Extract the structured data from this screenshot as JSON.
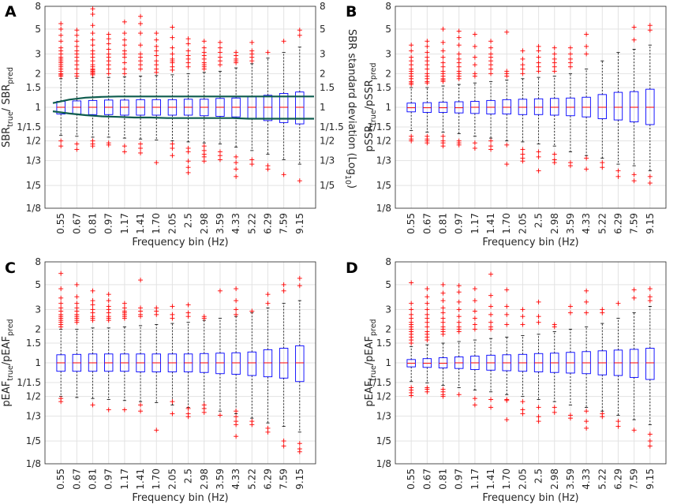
{
  "figure": {
    "xlabel": "Frequency bin (Hz)",
    "right_ylabel_main": "SBR standard deviation (Log",
    "right_ylabel_sub": "10",
    "right_ylabel_close": ")"
  },
  "colors": {
    "box": "#0000ff",
    "median": "#ff0000",
    "outlier": "#ff0000",
    "whisker": "#000000",
    "sd_curve": "#0e5c4e",
    "grid": "#e3e3e3"
  },
  "chart_data": [
    {
      "type": "box",
      "panel": "A",
      "ylabel": {
        "main": "SBR",
        "sub1": "true",
        "mid": "/ SBR",
        "sub2": "pred"
      },
      "categories": [
        "0.55",
        "0.67",
        "0.81",
        "0.97",
        "1.17",
        "1.41",
        "1.70",
        "2.05",
        "2.5",
        "2.98",
        "3.59",
        "4.33",
        "5.22",
        "6.29",
        "7.59",
        "9.15"
      ],
      "yscale": "log",
      "ylim": [
        0.125,
        8
      ],
      "yticks": [
        0.125,
        0.2,
        0.3333,
        0.5,
        0.6667,
        1,
        1.5,
        2,
        3,
        5,
        8
      ],
      "ytick_labels": [
        "1/8",
        "1/5",
        "1/3",
        "1/2",
        "1/1.5",
        "1",
        "1.5",
        "2",
        "3",
        "5",
        "8"
      ],
      "right_yticks": [
        0.2,
        0.3333,
        0.5,
        0.6667,
        1,
        1.5,
        2,
        3,
        5,
        8
      ],
      "right_ytick_labels": [
        "1/5",
        "1/3",
        "1/2",
        "1/1.5",
        "1",
        "1.5",
        "2",
        "3",
        "5",
        "8"
      ],
      "q1": [
        0.87,
        0.87,
        0.86,
        0.86,
        0.85,
        0.85,
        0.85,
        0.85,
        0.85,
        0.84,
        0.83,
        0.82,
        0.79,
        0.76,
        0.73,
        0.71
      ],
      "median": [
        1.0,
        1.0,
        1.0,
        1.0,
        1.0,
        1.0,
        1.0,
        1.0,
        1.0,
        1.0,
        1.0,
        1.0,
        1.0,
        1.0,
        1.0,
        1.0
      ],
      "q3": [
        1.13,
        1.14,
        1.15,
        1.16,
        1.16,
        1.17,
        1.17,
        1.17,
        1.18,
        1.18,
        1.2,
        1.21,
        1.24,
        1.28,
        1.33,
        1.37
      ],
      "whisker_low": [
        0.56,
        0.55,
        0.54,
        0.54,
        0.53,
        0.52,
        0.51,
        0.5,
        0.49,
        0.48,
        0.47,
        0.44,
        0.41,
        0.38,
        0.34,
        0.31
      ],
      "whisker_high": [
        1.8,
        1.82,
        1.85,
        1.85,
        1.87,
        1.9,
        1.92,
        1.95,
        2.0,
        2.05,
        2.1,
        2.25,
        2.45,
        2.75,
        3.1,
        3.45
      ],
      "outliers": [
        [
          5.6,
          5.0,
          4.4,
          3.9,
          3.4,
          3.2,
          3.0,
          2.8,
          2.7,
          2.6,
          2.5,
          2.4,
          2.3,
          2.2,
          2.1,
          2.0,
          1.95,
          1.9,
          0.5,
          0.45
        ],
        [
          4.9,
          4.4,
          3.9,
          3.5,
          3.2,
          3.0,
          2.8,
          2.6,
          2.4,
          2.2,
          2.0,
          1.9,
          0.47,
          0.42
        ],
        [
          7.6,
          6.8,
          5.4,
          4.6,
          4.0,
          3.6,
          3.2,
          3.0,
          2.8,
          2.6,
          2.4,
          2.3,
          2.2,
          2.15,
          2.1,
          2.05,
          2.0,
          1.95,
          0.5,
          0.47,
          0.45
        ],
        [
          4.5,
          4.1,
          3.7,
          3.3,
          3.0,
          2.8,
          2.6,
          2.4,
          2.2,
          2.0,
          0.48,
          0.46
        ],
        [
          5.8,
          4.6,
          4.0,
          3.6,
          3.2,
          3.0,
          2.8,
          2.5,
          2.2,
          2.0,
          0.45,
          0.4
        ],
        [
          6.5,
          5.6,
          4.6,
          3.6,
          3.0,
          2.8,
          2.6,
          2.4,
          2.2,
          0.47,
          0.43,
          0.39
        ],
        [
          4.6,
          4.0,
          3.5,
          3.2,
          2.9,
          2.6,
          2.4,
          2.2,
          2.05,
          0.32
        ],
        [
          5.2,
          4.2,
          3.4,
          3.0,
          2.7,
          2.6,
          2.5,
          2.3,
          2.15,
          0.47,
          0.43,
          0.37
        ],
        [
          4.1,
          3.7,
          3.2,
          2.9,
          2.7,
          2.5,
          2.3,
          0.43,
          0.4,
          0.33,
          0.29,
          0.26
        ],
        [
          3.9,
          3.4,
          3.1,
          2.9,
          2.7,
          2.5,
          2.4,
          2.3,
          2.2,
          0.45,
          0.41,
          0.38,
          0.36,
          0.33
        ],
        [
          3.8,
          3.4,
          3.1,
          2.8,
          2.6,
          2.4,
          0.4,
          0.37,
          0.34
        ],
        [
          3.1,
          2.9,
          2.7,
          2.6,
          2.5,
          0.36,
          0.32,
          0.28,
          0.24
        ],
        [
          3.8,
          3.2,
          3.0,
          2.8,
          2.6,
          0.34,
          0.31
        ],
        [
          3.1,
          0.3,
          0.28
        ],
        [
          3.9,
          0.25
        ],
        [
          4.9,
          4.4,
          0.22
        ]
      ],
      "sd_curve": {
        "upper": [
          1.09,
          1.17,
          1.22,
          1.24,
          1.25,
          1.25,
          1.25,
          1.25,
          1.25,
          1.25,
          1.25,
          1.25,
          1.25,
          1.25,
          1.25,
          1.25,
          1.25
        ],
        "lower": [
          0.92,
          0.88,
          0.85,
          0.83,
          0.82,
          0.81,
          0.81,
          0.8,
          0.8,
          0.8,
          0.8,
          0.8,
          0.79,
          0.79,
          0.79,
          0.79,
          0.79
        ]
      }
    },
    {
      "type": "box",
      "panel": "B",
      "ylabel": {
        "main": "pSSR",
        "sub1": "true",
        "mid": "/pSSR",
        "sub2": "pred"
      },
      "categories": [
        "0.55",
        "0.67",
        "0.81",
        "0.97",
        "1.17",
        "1.41",
        "1.70",
        "2.05",
        "2.5",
        "2.98",
        "3.59",
        "4.33",
        "5.22",
        "6.29",
        "7.59",
        "9.15"
      ],
      "yscale": "log",
      "ylim": [
        0.125,
        8
      ],
      "yticks": [
        0.125,
        0.2,
        0.3333,
        0.5,
        0.6667,
        1,
        1.5,
        2,
        3,
        5,
        8
      ],
      "ytick_labels": [
        "1/8",
        "1/5",
        "1/3",
        "1/2",
        "1/1.5",
        "1",
        "1.5",
        "2",
        "3",
        "5",
        "8"
      ],
      "q1": [
        0.91,
        0.9,
        0.9,
        0.89,
        0.88,
        0.87,
        0.87,
        0.86,
        0.86,
        0.85,
        0.84,
        0.82,
        0.79,
        0.77,
        0.74,
        0.7
      ],
      "median": [
        0.99,
        0.99,
        0.99,
        0.99,
        1.0,
        1.0,
        1.0,
        1.0,
        1.0,
        1.0,
        1.0,
        1.0,
        1.0,
        1.0,
        1.0,
        1.0
      ],
      "q3": [
        1.09,
        1.1,
        1.11,
        1.12,
        1.13,
        1.15,
        1.17,
        1.18,
        1.19,
        1.2,
        1.21,
        1.23,
        1.3,
        1.36,
        1.38,
        1.45
      ],
      "whisker_low": [
        0.62,
        0.6,
        0.6,
        0.58,
        0.55,
        0.53,
        0.5,
        0.49,
        0.47,
        0.45,
        0.4,
        0.37,
        0.35,
        0.31,
        0.3,
        0.27
      ],
      "whisker_high": [
        1.5,
        1.5,
        1.55,
        1.6,
        1.65,
        1.7,
        1.75,
        1.8,
        1.85,
        1.9,
        2.0,
        2.2,
        2.6,
        3.1,
        3.3,
        3.6
      ],
      "outliers": [
        [
          3.6,
          3.2,
          2.8,
          2.6,
          2.4,
          2.2,
          2.1,
          2.0,
          1.9,
          1.8,
          1.7,
          1.65,
          1.6,
          0.55,
          0.52,
          0.5
        ],
        [
          3.9,
          3.5,
          3.1,
          2.8,
          2.6,
          2.4,
          2.2,
          2.0,
          1.9,
          1.8,
          1.7,
          1.65,
          0.55,
          0.52,
          0.5,
          0.48
        ],
        [
          5.0,
          3.8,
          3.2,
          2.8,
          2.5,
          2.3,
          2.1,
          2.0,
          1.9,
          1.8,
          1.75,
          1.7,
          0.55,
          0.5,
          0.48,
          0.45
        ],
        [
          4.8,
          4.2,
          3.6,
          3.0,
          2.7,
          2.5,
          2.3,
          2.1,
          2.0,
          1.9,
          1.8,
          0.5,
          0.48,
          0.46
        ],
        [
          4.5,
          3.5,
          2.8,
          2.4,
          2.0,
          1.9,
          0.48,
          0.43
        ],
        [
          3.9,
          3.4,
          3.0,
          2.8,
          2.6,
          2.4,
          2.2,
          2.0,
          0.5,
          0.45,
          0.42
        ],
        [
          4.7,
          2.1,
          2.0,
          1.9,
          0.46,
          0.31
        ],
        [
          3.2,
          2.7,
          2.4,
          2.2,
          2.0,
          0.42,
          0.38,
          0.35,
          0.33
        ],
        [
          3.5,
          3.2,
          2.8,
          2.5,
          2.3,
          2.1,
          0.4,
          0.36,
          0.27
        ],
        [
          3.4,
          3.0,
          2.7,
          2.5,
          2.3,
          2.1,
          0.38,
          0.34,
          0.32
        ],
        [
          3.4,
          3.0,
          2.7,
          2.5,
          2.3,
          0.32,
          0.3
        ],
        [
          4.5,
          3.5,
          3.0,
          0.35,
          0.28
        ],
        [
          0.32,
          0.29
        ],
        [
          0.27,
          0.24
        ],
        [
          5.2,
          4.0,
          0.25,
          0.22
        ],
        [
          5.4,
          4.9,
          0.24,
          0.21
        ]
      ]
    },
    {
      "type": "box",
      "panel": "C",
      "ylabel": {
        "main": "pEAF",
        "sub1": "true",
        "mid": "/pEAF",
        "sub2": "pred"
      },
      "categories": [
        "0.55",
        "0.67",
        "0.81",
        "0.97",
        "1.17",
        "1.41",
        "1.70",
        "2.05",
        "2.5",
        "2.98",
        "3.59",
        "4.33",
        "5.22",
        "6.29",
        "7.59",
        "9.15"
      ],
      "yscale": "log",
      "ylim": [
        0.125,
        8
      ],
      "yticks": [
        0.125,
        0.2,
        0.3333,
        0.5,
        0.6667,
        1,
        1.5,
        2,
        3,
        5,
        8
      ],
      "ytick_labels": [
        "1/8",
        "1/5",
        "1/3",
        "1/2",
        "1/1.5",
        "1",
        "1.5",
        "2",
        "3",
        "5",
        "8"
      ],
      "q1": [
        0.84,
        0.84,
        0.84,
        0.84,
        0.84,
        0.83,
        0.83,
        0.83,
        0.83,
        0.82,
        0.8,
        0.79,
        0.77,
        0.75,
        0.73,
        0.68
      ],
      "median": [
        1.0,
        1.0,
        1.0,
        1.0,
        1.0,
        1.0,
        1.0,
        1.0,
        1.0,
        1.0,
        1.0,
        1.0,
        1.0,
        1.0,
        1.0,
        1.0
      ],
      "q3": [
        1.18,
        1.19,
        1.2,
        1.2,
        1.2,
        1.2,
        1.2,
        1.2,
        1.2,
        1.21,
        1.22,
        1.23,
        1.25,
        1.31,
        1.35,
        1.42
      ],
      "whisker_low": [
        0.5,
        0.49,
        0.48,
        0.47,
        0.46,
        0.45,
        0.44,
        0.42,
        0.4,
        0.39,
        0.37,
        0.35,
        0.32,
        0.29,
        0.27,
        0.24
      ],
      "whisker_high": [
        2.0,
        2.0,
        2.05,
        2.05,
        2.1,
        2.15,
        2.2,
        2.25,
        2.3,
        2.4,
        2.5,
        2.6,
        2.8,
        3.1,
        3.4,
        3.6
      ],
      "outliers": [
        [
          6.3,
          4.6,
          3.8,
          3.4,
          3.1,
          2.9,
          2.7,
          2.6,
          2.5,
          2.4,
          2.3,
          2.2,
          2.1,
          0.48,
          0.45
        ],
        [
          5.0,
          3.9,
          3.4,
          3.1,
          2.9,
          2.7,
          2.6,
          2.5,
          2.4,
          2.3
        ],
        [
          4.4,
          3.6,
          3.3,
          3.0,
          2.8,
          2.6,
          2.5,
          2.4,
          0.42
        ],
        [
          4.1,
          3.6,
          3.2,
          3.0,
          2.8,
          2.6,
          2.5,
          2.4,
          0.38
        ],
        [
          3.4,
          3.1,
          2.9,
          2.8,
          2.7,
          2.6,
          2.5,
          0.38
        ],
        [
          5.5,
          3.1,
          2.9,
          2.7,
          2.6,
          0.42,
          0.37
        ],
        [
          3.1,
          2.9,
          2.7,
          0.25
        ],
        [
          3.2,
          2.7,
          2.5,
          0.45,
          0.35
        ],
        [
          3.3,
          2.8,
          2.6,
          0.39,
          0.35,
          0.33
        ],
        [
          2.6,
          2.5,
          0.42,
          0.39,
          0.36
        ],
        [
          4.4,
          0.34
        ],
        [
          4.6,
          3.6,
          3.0,
          2.7,
          0.37,
          0.33,
          0.3,
          0.28,
          0.22
        ],
        [
          2.9,
          0.3,
          0.28
        ],
        [
          4.1,
          3.4,
          0.26,
          0.24
        ],
        [
          5.0,
          4.4,
          0.2,
          0.18
        ],
        [
          5.7,
          4.9,
          0.19,
          0.17,
          0.16
        ]
      ]
    },
    {
      "type": "box",
      "panel": "D",
      "ylabel": {
        "main": "pEAF",
        "sub1": "true",
        "mid": "/pEAF",
        "sub2": "pred"
      },
      "categories": [
        "0.55",
        "0.67",
        "0.81",
        "0.97",
        "1.17",
        "1.41",
        "1.70",
        "2.05",
        "2.5",
        "2.98",
        "3.59",
        "4.33",
        "5.22",
        "6.29",
        "7.59",
        "9.15"
      ],
      "yscale": "log",
      "ylim": [
        0.125,
        8
      ],
      "yticks": [
        0.125,
        0.2,
        0.3333,
        0.5,
        0.6667,
        1,
        1.5,
        2,
        3,
        5,
        8
      ],
      "ytick_labels": [
        "1/8",
        "1/5",
        "1/3",
        "1/2",
        "1/1.5",
        "1",
        "1.5",
        "2",
        "3",
        "5",
        "8"
      ],
      "q1": [
        0.92,
        0.91,
        0.9,
        0.89,
        0.87,
        0.86,
        0.85,
        0.84,
        0.83,
        0.82,
        0.81,
        0.8,
        0.78,
        0.77,
        0.74,
        0.71
      ],
      "median": [
        0.99,
        0.99,
        0.99,
        1.0,
        1.0,
        1.0,
        1.0,
        1.0,
        1.0,
        1.0,
        1.0,
        1.0,
        1.0,
        1.0,
        1.0,
        1.0
      ],
      "q3": [
        1.07,
        1.09,
        1.11,
        1.13,
        1.15,
        1.17,
        1.18,
        1.19,
        1.21,
        1.22,
        1.24,
        1.26,
        1.28,
        1.3,
        1.32,
        1.35
      ],
      "whisker_low": [
        0.68,
        0.66,
        0.63,
        0.6,
        0.57,
        0.55,
        0.52,
        0.5,
        0.47,
        0.45,
        0.42,
        0.4,
        0.37,
        0.34,
        0.31,
        0.28
      ],
      "whisker_high": [
        1.4,
        1.45,
        1.5,
        1.55,
        1.6,
        1.65,
        1.7,
        1.75,
        1.8,
        1.9,
        2.0,
        2.1,
        2.25,
        2.5,
        2.8,
        3.2
      ],
      "outliers": [
        [
          5.2,
          3.4,
          3.0,
          2.7,
          2.5,
          2.3,
          2.2,
          2.1,
          2.0,
          1.9,
          1.8,
          1.7,
          1.6,
          1.5,
          0.6,
          0.57,
          0.54,
          0.51
        ],
        [
          4.6,
          3.9,
          3.4,
          3.0,
          2.7,
          2.5,
          2.3,
          2.1,
          1.9,
          1.8,
          1.7,
          1.6,
          0.6,
          0.58,
          0.55
        ],
        [
          5.0,
          4.2,
          3.6,
          3.1,
          2.8,
          2.5,
          2.3,
          2.1,
          2.0,
          1.9,
          1.8,
          0.58,
          0.55,
          0.52,
          0.5
        ],
        [
          4.9,
          4.3,
          3.5,
          3.0,
          2.6,
          2.3,
          2.1,
          2.0,
          1.9,
          0.52
        ],
        [
          4.6,
          3.6,
          2.9,
          2.5,
          2.2,
          2.0,
          0.48,
          0.42
        ],
        [
          6.2,
          4.0,
          3.2,
          2.7,
          2.3,
          2.1,
          2.0,
          0.47,
          0.4
        ],
        [
          4.5,
          3.2,
          2.7,
          2.2,
          0.47,
          0.46,
          0.31
        ],
        [
          3.0,
          2.6,
          2.2,
          0.45,
          0.38,
          0.35
        ],
        [
          3.5,
          2.6,
          2.3,
          0.4,
          0.33,
          0.3
        ],
        [
          2.2,
          2.1,
          0.4,
          0.36
        ],
        [
          3.2,
          2.8,
          0.34,
          0.32
        ],
        [
          4.4,
          3.5,
          2.8,
          0.37,
          0.3,
          0.26
        ],
        [
          3.0,
          2.8,
          0.35,
          0.33
        ],
        [
          3.4,
          0.3,
          0.27
        ],
        [
          4.5,
          3.8,
          0.25
        ],
        [
          4.6,
          3.9,
          3.6,
          0.23,
          0.2,
          0.18
        ]
      ]
    }
  ]
}
